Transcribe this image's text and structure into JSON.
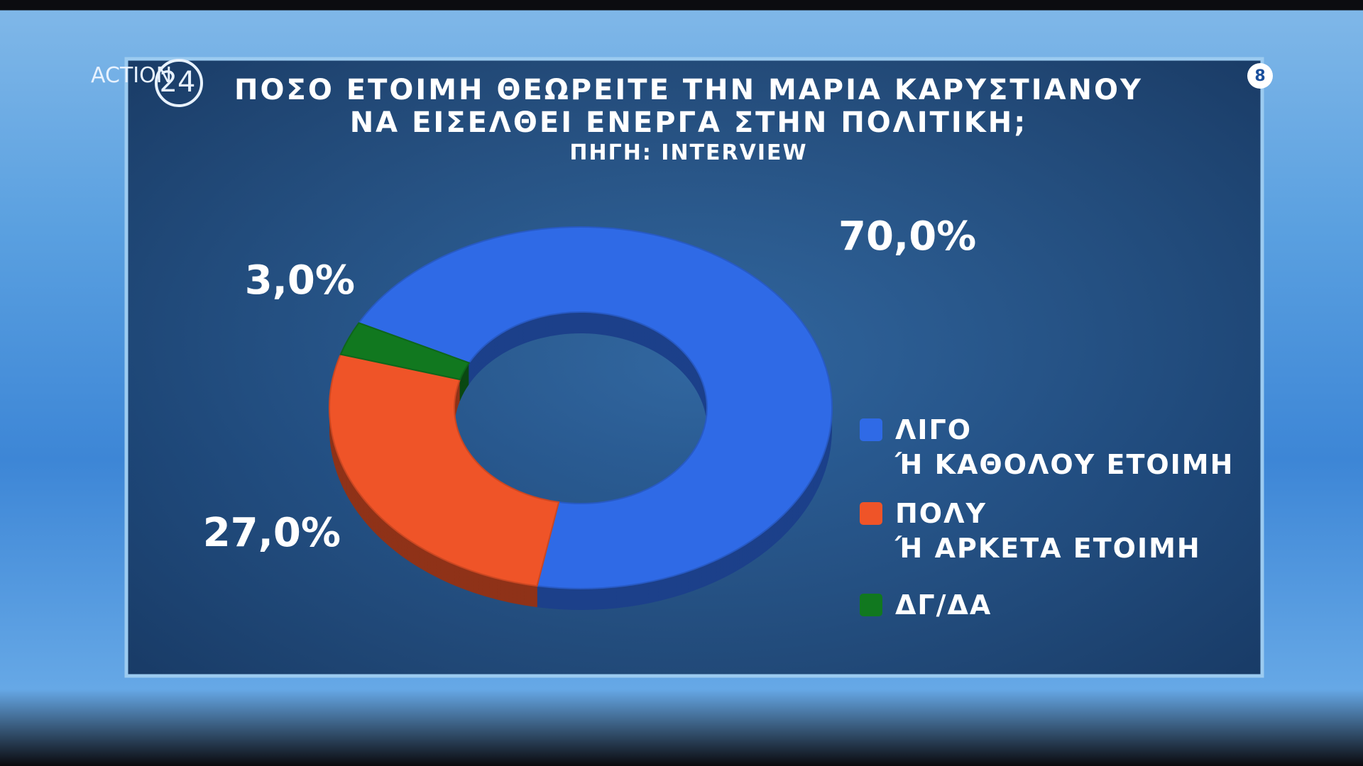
{
  "chart_data": {
    "type": "donut",
    "title": "ΠΟΣΟ ΕΤΟΙΜΗ ΘΕΩΡΕΙΤΕ ΤΗΝ ΜΑΡΙΑ ΚΑΡΥΣΤΙΑΝΟΥ\nΝΑ ΕΙΣΕΛΘΕΙ ΕΝΕΡΓΑ ΣΤΗΝ ΠΟΛΙΤΙΚΗ;",
    "subtitle": "ΠΗΓΗ: INTERVIEW",
    "categories": [
      "ΛΙΓΟ\nΉ ΚΑΘΟΛΟΥ ΕΤΟΙΜΗ",
      "ΠΟΛΥ\nΉ ΑΡΚΕΤΑ ΕΤΟΙΜΗ",
      "ΔΓ/ΔΑ"
    ],
    "values": [
      70,
      27,
      3
    ],
    "value_labels": [
      "70,0%",
      "27,0%",
      "3,0%"
    ],
    "colors": [
      "#2f6ae6",
      "#ef5428",
      "#11781f"
    ],
    "legend": "right"
  },
  "logo": {
    "name": "ACTION",
    "number": "24"
  },
  "badge": "8"
}
